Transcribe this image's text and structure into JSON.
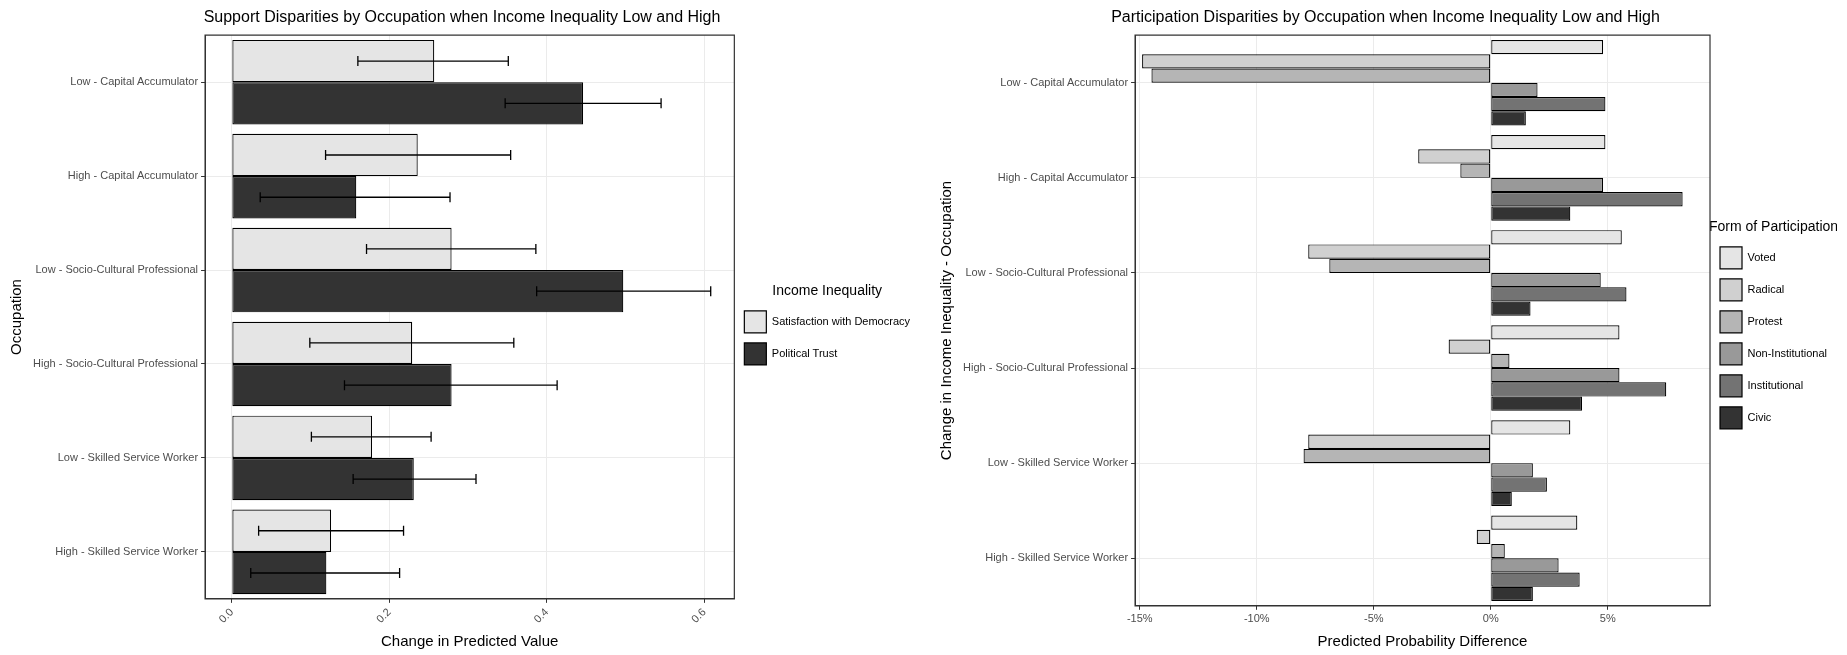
{
  "chart_data": [
    {
      "type": "bar",
      "orientation": "horizontal",
      "title": "Support Disparities by Occupation when Income Inequality Low and High",
      "xlabel": "Change in Predicted Value",
      "ylabel": "Occupation",
      "legend_title": "Income Inequality",
      "legend": "right",
      "grid": true,
      "categories": [
        "Low - Capital Accumulator",
        "High - Capital Accumulator",
        "Low - Socio-Cultural Professional",
        "High - Socio-Cultural Professional",
        "Low - Skilled Service Worker",
        "High - Skilled Service Worker"
      ],
      "xlim": [
        -0.034,
        0.638
      ],
      "xticks": [
        {
          "value": 0,
          "label": "0.0"
        },
        0.2,
        0.4,
        0.6
      ],
      "series": [
        {
          "name": "Satisfaction with Democracy",
          "color": "#e5e5e5",
          "values": [
            0.257,
            0.236,
            0.279,
            0.229,
            0.178,
            0.126
          ],
          "errors": [
            [
              0.16,
              0.351
            ],
            [
              0.119,
              0.354
            ],
            [
              0.171,
              0.386
            ],
            [
              0.099,
              0.358
            ],
            [
              0.101,
              0.253
            ],
            [
              0.034,
              0.218
            ]
          ]
        },
        {
          "name": "Political Trust",
          "color": "#333333",
          "values": [
            0.446,
            0.158,
            0.497,
            0.279,
            0.231,
            0.12
          ],
          "errors": [
            [
              0.347,
              0.545
            ],
            [
              0.036,
              0.277
            ],
            [
              0.387,
              0.608
            ],
            [
              0.143,
              0.413
            ],
            [
              0.154,
              0.31
            ],
            [
              0.024,
              0.213
            ]
          ]
        }
      ]
    },
    {
      "type": "bar",
      "orientation": "horizontal",
      "title": "Participation Disparities by Occupation when Income Inequality Low and High",
      "xlabel": "Predicted Probability Difference",
      "ylabel": "Change in Income Inequality - Occupation",
      "legend_title": "Form of Participation",
      "legend": "right",
      "grid": true,
      "categories": [
        "Low - Capital Accumulator",
        "High - Capital Accumulator",
        "Low - Socio-Cultural Professional",
        "High - Socio-Cultural Professional",
        "Low - Skilled Service Worker",
        "High - Skilled Service Worker"
      ],
      "xlim": [
        -15.2,
        9.37
      ],
      "xticks": [
        {
          "value": -15,
          "label": "-15%"
        },
        {
          "value": -10,
          "label": "-10%"
        },
        {
          "value": -5,
          "label": "-5%"
        },
        {
          "value": 0,
          "label": "0%"
        },
        {
          "value": 5,
          "label": "5%"
        }
      ],
      "series": [
        {
          "name": "Voted",
          "color": "#e5e5e5",
          "values": [
            4.8,
            4.9,
            5.6,
            5.5,
            3.4,
            3.7
          ]
        },
        {
          "name": "Radical",
          "color": "#d0d0d0",
          "values": [
            -14.9,
            -3.1,
            -7.8,
            -1.8,
            -7.8,
            -0.6
          ]
        },
        {
          "name": "Protest",
          "color": "#b5b5b5",
          "values": [
            -14.5,
            -1.3,
            -6.9,
            0.8,
            -8.0,
            0.6
          ]
        },
        {
          "name": "Non-Institutional",
          "color": "#999999",
          "values": [
            2.0,
            4.8,
            4.7,
            5.5,
            1.8,
            2.9
          ]
        },
        {
          "name": "Institutional",
          "color": "#737373",
          "values": [
            4.9,
            8.2,
            5.8,
            7.5,
            2.4,
            3.8
          ]
        },
        {
          "name": "Civic",
          "color": "#333333",
          "values": [
            1.5,
            3.4,
            1.7,
            3.9,
            0.9,
            1.8
          ]
        }
      ]
    }
  ]
}
